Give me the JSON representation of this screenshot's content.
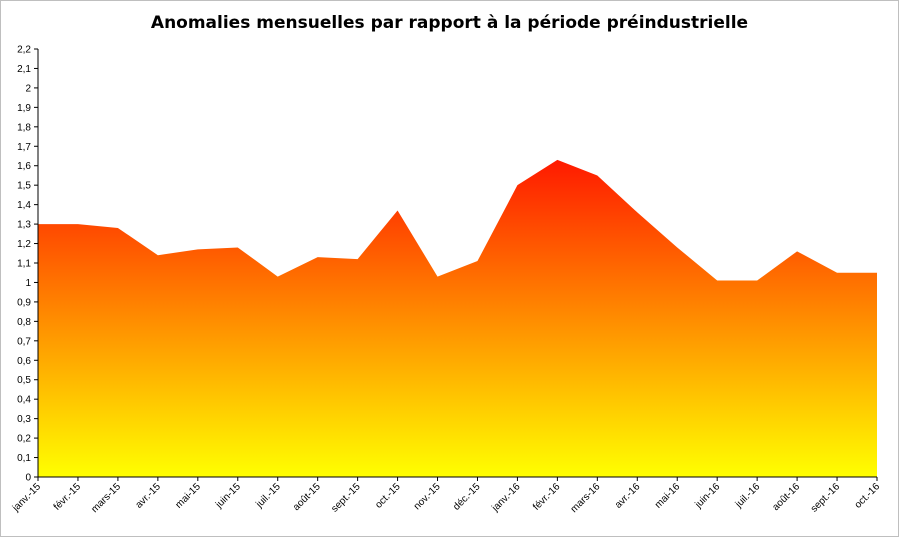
{
  "chart_data": {
    "type": "area",
    "title": "Anomalies mensuelles par rapport à la période préindustrielle",
    "xlabel": "",
    "ylabel": "",
    "ylim": [
      0,
      2.2
    ],
    "ystep": 0.1,
    "grid": false,
    "legend": "none",
    "categories": [
      "janv.-15",
      "févr.-15",
      "mars-15",
      "avr.-15",
      "mai-15",
      "juin-15",
      "juil.-15",
      "août-15",
      "sept.-15",
      "oct.-15",
      "nov.-15",
      "déc.-15",
      "janv.-16",
      "févr.-16",
      "mars-16",
      "avr.-16",
      "mai-16",
      "juin-16",
      "juil.-16",
      "août-16",
      "sept.-16",
      "oct.-16"
    ],
    "series": [
      {
        "values": [
          1.3,
          1.3,
          1.28,
          1.14,
          1.17,
          1.18,
          1.03,
          1.13,
          1.12,
          1.37,
          1.03,
          1.11,
          1.5,
          1.63,
          1.55,
          1.36,
          1.18,
          1.01,
          1.01,
          1.16,
          1.05,
          1.05
        ]
      }
    ],
    "ytick_labels": [
      "0",
      "0,1",
      "0,2",
      "0,3",
      "0,4",
      "0,5",
      "0,6",
      "0,7",
      "0,8",
      "0,9",
      "1",
      "1,1",
      "1,2",
      "1,3",
      "1,4",
      "1,5",
      "1,6",
      "1,7",
      "1,8",
      "1,9",
      "2",
      "2,1",
      "2,2"
    ],
    "colors": {
      "fill_top": "#ff1a00",
      "fill_bottom": "#ffff00",
      "axis": "#000000"
    }
  }
}
